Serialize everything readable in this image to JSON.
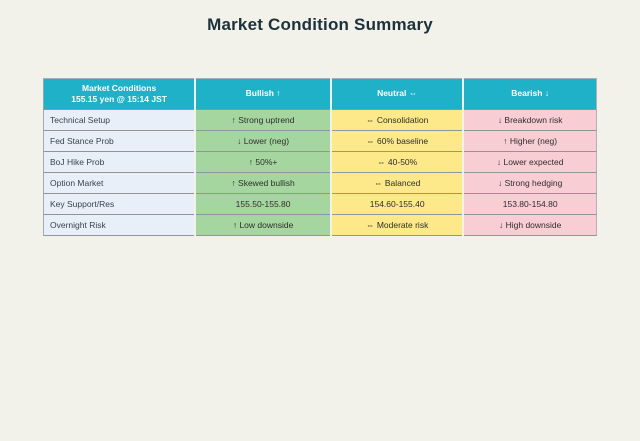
{
  "page": {
    "title": "Market Condition Summary"
  },
  "colors": {
    "page_bg": "#f2f1ea",
    "header_bg": "#1fb1c7",
    "label_bg": "#e9eff8",
    "bullish_bg": "#a6d69f",
    "neutral_bg": "#fde98a",
    "bearish_bg": "#f9cdd4",
    "title_text": "#1b323a"
  },
  "table": {
    "header": {
      "conditions_label": "Market Conditions",
      "conditions_sublabel": "155.15 yen @ 15:14 JST",
      "bullish_label": "Bullish ↑",
      "neutral_label": "Neutral ⇔",
      "bearish_label": "Bearish ↓"
    },
    "rows": [
      {
        "label": "Technical Setup",
        "bullish": "↑ Strong uptrend",
        "neutral": "⇔ Consolidation",
        "bearish": "↓ Breakdown risk"
      },
      {
        "label": "Fed Stance Prob",
        "bullish": "↓ Lower (neg)",
        "neutral": "⇔ 60% baseline",
        "bearish": "↑ Higher (neg)"
      },
      {
        "label": "BoJ Hike Prob",
        "bullish": "↑ 50%+",
        "neutral": "⇔ 40-50%",
        "bearish": "↓ Lower expected"
      },
      {
        "label": "Option Market",
        "bullish": "↑ Skewed bullish",
        "neutral": "⇔ Balanced",
        "bearish": "↓ Strong hedging"
      },
      {
        "label": "Key Support/Res",
        "bullish": "155.50-155.80",
        "neutral": "154.60-155.40",
        "bearish": "153.80-154.80"
      },
      {
        "label": "Overnight Risk",
        "bullish": "↑ Low downside",
        "neutral": "⇔ Moderate risk",
        "bearish": "↓ High downside"
      }
    ]
  }
}
